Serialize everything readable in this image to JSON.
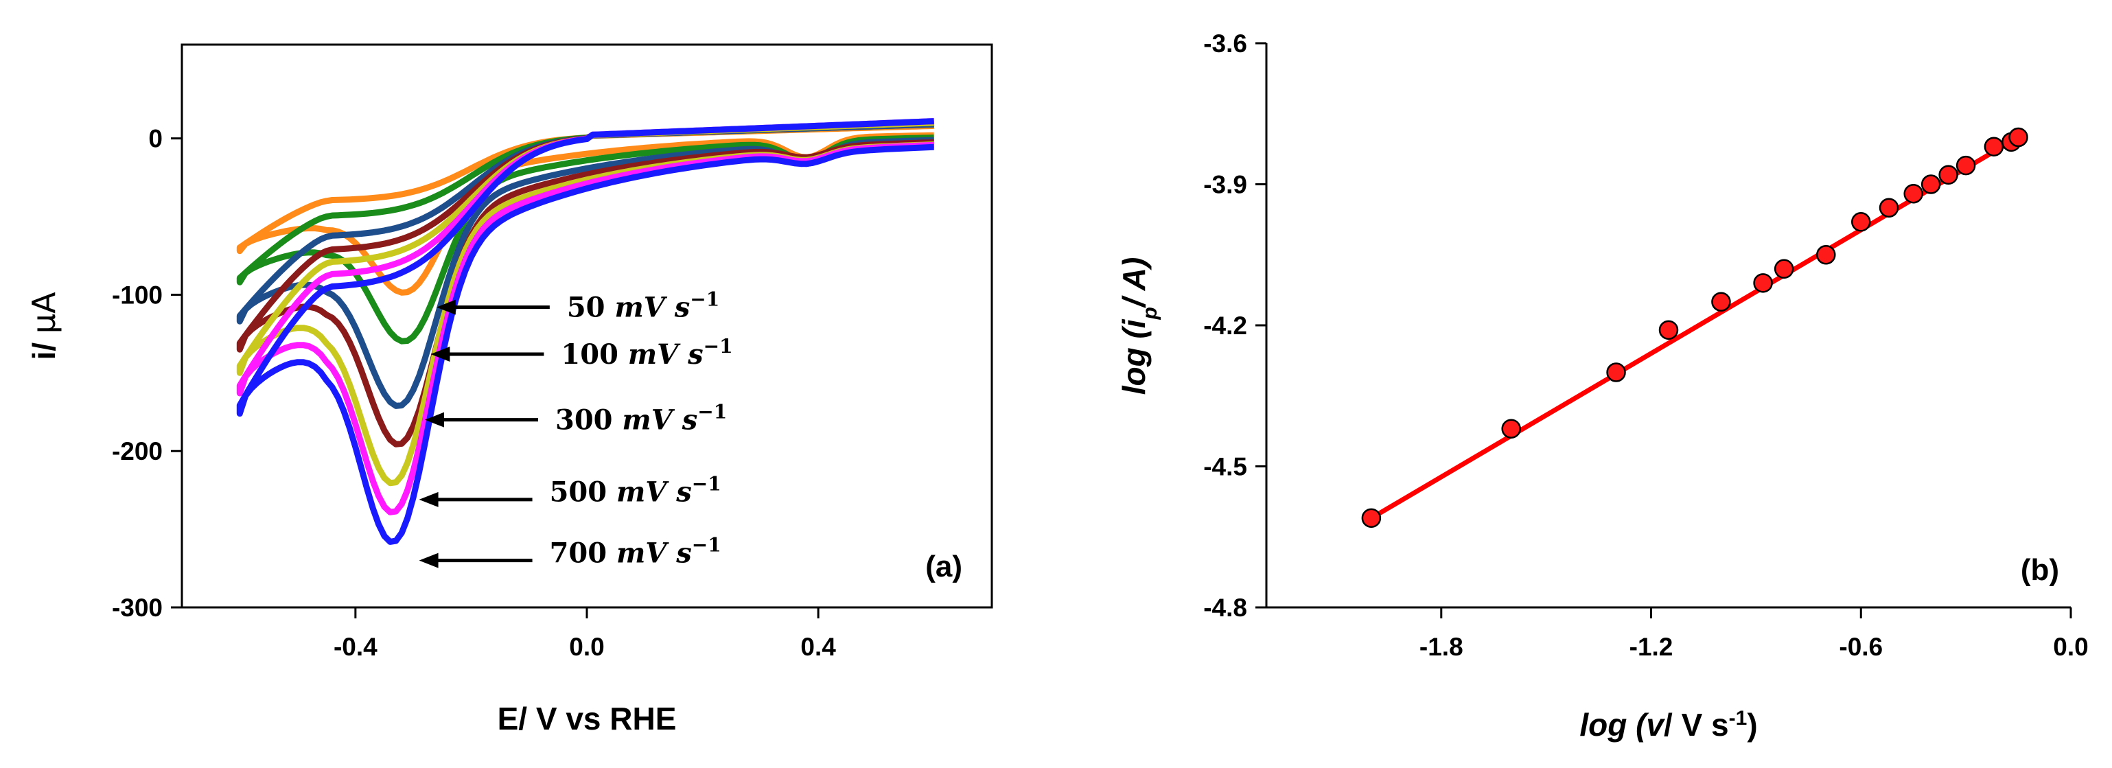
{
  "chart_data": [
    {
      "type": "line",
      "panel_label": "(a)",
      "xlabel": "E/ V vs RHE",
      "ylabel_prefix": "i/ ",
      "ylabel_unit": "μA",
      "xlim": [
        -0.7,
        0.7
      ],
      "ylim": [
        -300,
        60
      ],
      "xticks": [
        -0.4,
        0.0,
        0.4
      ],
      "xtick_labels": [
        "-0.4",
        "0.0",
        "0.4"
      ],
      "yticks": [
        0,
        -100,
        -200,
        -300
      ],
      "ytick_labels": [
        "0",
        "-100",
        "-200",
        "-300"
      ],
      "grid": false,
      "series": [
        {
          "name": "50 mV s-1",
          "color": "#ff8c1a",
          "i_cathodic_peak": -107,
          "E_peak": -0.31,
          "i_start": -72,
          "i_mid": -40,
          "i_end_top": 8,
          "i_end_bottom": 4
        },
        {
          "name": "100 mV s-1",
          "color": "#1a8c1a",
          "i_cathodic_peak": -139,
          "E_peak": -0.31,
          "i_start": -92,
          "i_mid": -50,
          "i_end_top": 9,
          "i_end_bottom": 3
        },
        {
          "name": "",
          "color": "#1f4e8c",
          "i_cathodic_peak": -180,
          "E_peak": -0.32,
          "i_start": -117,
          "i_mid": -63,
          "i_end_top": 9,
          "i_end_bottom": 2
        },
        {
          "name": "300 mV s-1",
          "color": "#8b1a1a",
          "i_cathodic_peak": -205,
          "E_peak": -0.32,
          "i_start": -135,
          "i_mid": -72,
          "i_end_top": 10,
          "i_end_bottom": 1
        },
        {
          "name": "500 mV s-1",
          "color": "#c8c81e",
          "i_cathodic_peak": -228,
          "E_peak": -0.33,
          "i_start": -150,
          "i_mid": -80,
          "i_end_top": 10,
          "i_end_bottom": 0
        },
        {
          "name": "",
          "color": "#ff1aff",
          "i_cathodic_peak": -248,
          "E_peak": -0.33,
          "i_start": -163,
          "i_mid": -88,
          "i_end_top": 11,
          "i_end_bottom": 0
        },
        {
          "name": "700 mV s-1",
          "color": "#1a1aff",
          "i_cathodic_peak": -268,
          "E_peak": -0.33,
          "i_start": -176,
          "i_mid": -96,
          "i_end_top": 11,
          "i_end_bottom": -1
        }
      ],
      "annotations": [
        {
          "value": "50",
          "unit": "mV",
          "suffix": "s",
          "exp": "−1",
          "i_arrow": -108,
          "E_arrow_tip": -0.26,
          "i_text": -108
        },
        {
          "value": "100",
          "unit": "mV",
          "suffix": "s",
          "exp": "−1",
          "i_arrow": -138,
          "E_arrow_tip": -0.27,
          "i_text": -138
        },
        {
          "value": "300",
          "unit": "mV",
          "suffix": "s",
          "exp": "−1",
          "i_arrow": -180,
          "E_arrow_tip": -0.28,
          "i_text": -180
        },
        {
          "value": "500",
          "unit": "mV",
          "suffix": "s",
          "exp": "−1",
          "i_arrow": -231,
          "E_arrow_tip": -0.29,
          "i_text": -226
        },
        {
          "value": "700",
          "unit": "mV",
          "suffix": "s",
          "exp": "−1",
          "i_arrow": -270,
          "E_arrow_tip": -0.29,
          "i_text": -265
        }
      ]
    },
    {
      "type": "scatter",
      "panel_label": "(b)",
      "xlabel_parts": [
        "log (",
        "v",
        "/ V s",
        "-1",
        ")"
      ],
      "ylabel_parts": [
        "log (i",
        "p",
        "/ A)"
      ],
      "xlim": [
        -2.3,
        0.0
      ],
      "ylim": [
        -4.8,
        -3.6
      ],
      "xticks": [
        -1.8,
        -1.2,
        -0.6,
        0.0
      ],
      "xtick_labels": [
        "-1.8",
        "-1.2",
        "-0.6",
        "0.0"
      ],
      "yticks": [
        -3.6,
        -3.9,
        -4.2,
        -4.5,
        -4.8
      ],
      "ytick_labels": [
        "-3.6",
        "-3.9",
        "-4.2",
        "-4.5",
        "-4.8"
      ],
      "grid": false,
      "marker_color": "#ff1a1a",
      "line_color": "#ff0000",
      "x": [
        -2.0,
        -1.6,
        -1.3,
        -1.15,
        -1.0,
        -0.88,
        -0.82,
        -0.7,
        -0.6,
        -0.52,
        -0.45,
        -0.4,
        -0.35,
        -0.3,
        -0.22,
        -0.17,
        -0.15
      ],
      "y": [
        -4.61,
        -4.42,
        -4.3,
        -4.21,
        -4.15,
        -4.11,
        -4.08,
        -4.05,
        -3.98,
        -3.95,
        -3.92,
        -3.9,
        -3.88,
        -3.86,
        -3.82,
        -3.81,
        -3.8
      ],
      "fit": {
        "x": [
          -2.0,
          -0.15
        ],
        "y": [
          -4.61,
          -3.8
        ]
      }
    }
  ]
}
